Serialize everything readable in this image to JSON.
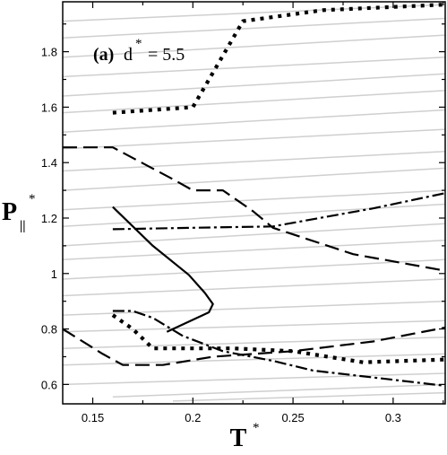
{
  "chart_data": {
    "type": "line",
    "annotation": {
      "label": "(a)",
      "text": "d",
      "sup": "*",
      "value": "= 5.5"
    },
    "xlabel": "T",
    "xlabel_sup": "*",
    "ylabel": "P",
    "ylabel_sub": "||",
    "ylabel_sup": "*",
    "xlim": [
      0.135,
      0.326
    ],
    "ylim": [
      0.53,
      1.98
    ],
    "xticks": [
      0.15,
      0.2,
      0.25,
      0.3
    ],
    "xtick_labels": [
      "0.15",
      "0.2",
      "0.25",
      "0.3"
    ],
    "yticks": [
      0.6,
      0.8,
      1.0,
      1.2,
      1.4,
      1.6,
      1.8
    ],
    "ytick_labels": [
      "0.6",
      "0.8",
      "1",
      "1.2",
      "1.4",
      "1.6",
      "1.8"
    ],
    "grid": false,
    "background_lines": [
      {
        "x": [
          0.135,
          0.326
        ],
        "y": [
          0.6,
          0.64
        ]
      },
      {
        "x": [
          0.135,
          0.326
        ],
        "y": [
          0.67,
          0.71
        ]
      },
      {
        "x": [
          0.135,
          0.326
        ],
        "y": [
          0.73,
          0.77
        ]
      },
      {
        "x": [
          0.135,
          0.326
        ],
        "y": [
          0.79,
          0.83
        ]
      },
      {
        "x": [
          0.135,
          0.326
        ],
        "y": [
          0.85,
          0.9
        ]
      },
      {
        "x": [
          0.135,
          0.326
        ],
        "y": [
          0.92,
          0.98
        ]
      },
      {
        "x": [
          0.135,
          0.326
        ],
        "y": [
          0.98,
          1.05
        ]
      },
      {
        "x": [
          0.135,
          0.326
        ],
        "y": [
          1.05,
          1.12
        ]
      },
      {
        "x": [
          0.135,
          0.326
        ],
        "y": [
          1.1,
          1.18
        ]
      },
      {
        "x": [
          0.135,
          0.326
        ],
        "y": [
          1.17,
          1.25
        ]
      },
      {
        "x": [
          0.135,
          0.326
        ],
        "y": [
          1.23,
          1.3
        ]
      },
      {
        "x": [
          0.135,
          0.326
        ],
        "y": [
          1.3,
          1.38
        ]
      },
      {
        "x": [
          0.135,
          0.326
        ],
        "y": [
          1.37,
          1.44
        ]
      },
      {
        "x": [
          0.135,
          0.326
        ],
        "y": [
          1.45,
          1.52
        ]
      },
      {
        "x": [
          0.135,
          0.326
        ],
        "y": [
          1.51,
          1.59
        ]
      },
      {
        "x": [
          0.135,
          0.326
        ],
        "y": [
          1.58,
          1.66
        ]
      },
      {
        "x": [
          0.135,
          0.326
        ],
        "y": [
          1.64,
          1.72
        ]
      },
      {
        "x": [
          0.135,
          0.326
        ],
        "y": [
          1.71,
          1.78
        ]
      },
      {
        "x": [
          0.135,
          0.326
        ],
        "y": [
          1.78,
          1.86
        ]
      },
      {
        "x": [
          0.135,
          0.326
        ],
        "y": [
          1.85,
          1.92
        ]
      },
      {
        "x": [
          0.135,
          0.326
        ],
        "y": [
          1.91,
          1.97
        ]
      },
      {
        "x": [
          0.16,
          0.326
        ],
        "y": [
          0.555,
          0.6
        ]
      },
      {
        "x": [
          0.19,
          0.326
        ],
        "y": [
          0.54,
          0.57
        ]
      }
    ],
    "series": [
      {
        "style": "dotted",
        "x": [
          0.16,
          0.2,
          0.225,
          0.265,
          0.326
        ],
        "y": [
          1.58,
          1.6,
          1.91,
          1.95,
          1.97
        ]
      },
      {
        "style": "dashed",
        "x": [
          0.135,
          0.16,
          0.19,
          0.2,
          0.215,
          0.23,
          0.24,
          0.28,
          0.326
        ],
        "y": [
          1.455,
          1.455,
          1.34,
          1.3,
          1.3,
          1.225,
          1.165,
          1.07,
          1.01
        ]
      },
      {
        "style": "dash-dot",
        "x": [
          0.16,
          0.2,
          0.24,
          0.29,
          0.326
        ],
        "y": [
          1.16,
          1.165,
          1.17,
          1.235,
          1.29
        ]
      },
      {
        "style": "solid",
        "x": [
          0.16,
          0.18,
          0.198,
          0.206,
          0.21,
          0.208,
          0.205,
          0.187
        ],
        "y": [
          1.24,
          1.1,
          0.995,
          0.93,
          0.89,
          0.86,
          0.85,
          0.79
        ]
      },
      {
        "style": "dash-dot",
        "x": [
          0.16,
          0.17,
          0.18,
          0.195,
          0.215,
          0.24,
          0.26,
          0.29,
          0.326
        ],
        "y": [
          0.865,
          0.865,
          0.84,
          0.775,
          0.72,
          0.685,
          0.65,
          0.625,
          0.595
        ]
      },
      {
        "style": "dashed",
        "x": [
          0.135,
          0.155,
          0.165,
          0.185,
          0.21,
          0.25,
          0.29,
          0.326
        ],
        "y": [
          0.8,
          0.71,
          0.67,
          0.67,
          0.7,
          0.72,
          0.755,
          0.805
        ]
      },
      {
        "style": "dotted",
        "x": [
          0.16,
          0.17,
          0.18,
          0.22,
          0.25,
          0.285,
          0.326
        ],
        "y": [
          0.85,
          0.8,
          0.73,
          0.73,
          0.72,
          0.68,
          0.69
        ]
      }
    ]
  }
}
